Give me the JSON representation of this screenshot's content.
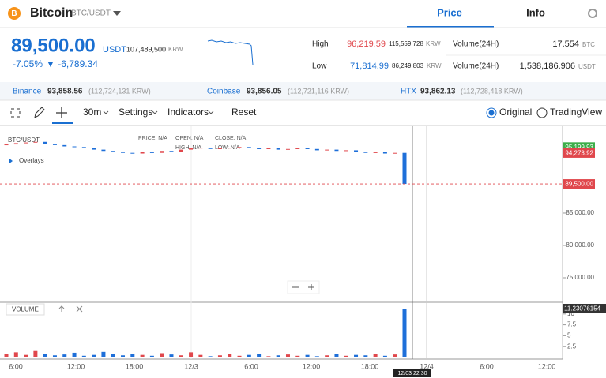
{
  "header": {
    "coin": "Bitcoin",
    "pair": "BTC/USDT",
    "tabs": [
      "Price",
      "Info"
    ]
  },
  "price": {
    "last": "89,500.00",
    "unit": "USDT",
    "krw": "107,489,500",
    "krw_unit": "KRW",
    "change_pct": "-7.05%",
    "change": "▼ -6,789.34"
  },
  "stats": {
    "high_label": "High",
    "high": "96,219.59",
    "high_krw": "115,559,728",
    "krw_unit": "KRW",
    "low_label": "Low",
    "low": "71,814.99",
    "low_krw": "86,249,803",
    "vol_label": "Volume(24H)",
    "vol_btc": "17.554",
    "btc": "BTC",
    "vol_usdt": "1,538,186.906",
    "usdt": "USDT"
  },
  "exchanges": [
    {
      "name": "Binance",
      "price": "93,858.56",
      "krw": "(112,724,131 KRW)"
    },
    {
      "name": "Coinbase",
      "price": "93,856.05",
      "krw": "(112,721,116 KRW)"
    },
    {
      "name": "HTX",
      "price": "93,862.13",
      "krw": "(112,728,418 KRW)"
    }
  ],
  "toolbar": {
    "interval": "30m",
    "settings": "Settings",
    "indicators": "Indicators",
    "reset": "Reset",
    "views": [
      "Original",
      "TradingView"
    ]
  },
  "chart": {
    "type": "candlestick",
    "symbol": "BTC/USDT",
    "overlays": "Overlays",
    "legend": [
      "PRICE: N/A",
      "OPEN: N/A",
      "CLOSE: N/A",
      "HIGH: N/A",
      "LOW: N/A"
    ],
    "ylim": [
      71340,
      98410
    ],
    "yticks": [
      {
        "value": 75000,
        "label": "75,000.00"
      },
      {
        "value": 80000,
        "label": "80,000.00"
      },
      {
        "value": 85000,
        "label": "85,000.00"
      }
    ],
    "price_tags": [
      {
        "value": 95199.93,
        "label": "95,199.93",
        "color": "#3cae4a"
      },
      {
        "value": 94273.92,
        "label": "94,273.92",
        "color": "#e0474c"
      },
      {
        "value": 89500,
        "label": "89,500.00",
        "color": "#e0474c",
        "dashed": true
      }
    ],
    "up_color": "#e0474c",
    "down_color": "#1e6fd9",
    "closes": [
      95600,
      95800,
      95900,
      96000,
      95700,
      95500,
      95300,
      95200,
      95000,
      94800,
      94600,
      94500,
      94300,
      94200,
      94400,
      94300,
      94600,
      94500,
      94800,
      95000,
      95100,
      94900,
      95000,
      95100,
      95200,
      95000,
      94900,
      95000,
      94800,
      94900,
      95000,
      94900,
      94700,
      94800,
      94600,
      94700,
      94500,
      94300,
      94400,
      94200,
      94300,
      89500
    ],
    "volume": {
      "label": "VOLUME",
      "ylim": [
        0,
        12.5
      ],
      "yticks": [
        2.5,
        5,
        7.5,
        10
      ],
      "values": [
        0.8,
        1.2,
        0.6,
        1.5,
        0.9,
        0.5,
        0.7,
        1.1,
        0.4,
        0.6,
        1.3,
        0.8,
        0.5,
        0.9,
        0.6,
        0.4,
        1.0,
        0.7,
        0.5,
        1.2,
        0.6,
        0.3,
        0.5,
        0.8,
        0.4,
        0.6,
        0.9,
        0.3,
        0.5,
        0.7,
        0.4,
        0.6,
        0.3,
        0.5,
        0.8,
        0.4,
        0.6,
        0.5,
        0.9,
        0.4,
        0.7,
        11.23076154
      ]
    },
    "x_labels": [
      "6:00",
      "12:00",
      "18:00",
      "12/3",
      "6:00",
      "12:00",
      "18:00",
      "12/4",
      "6:00",
      "12:00"
    ],
    "crosshair_label": "12/03 22:30"
  }
}
